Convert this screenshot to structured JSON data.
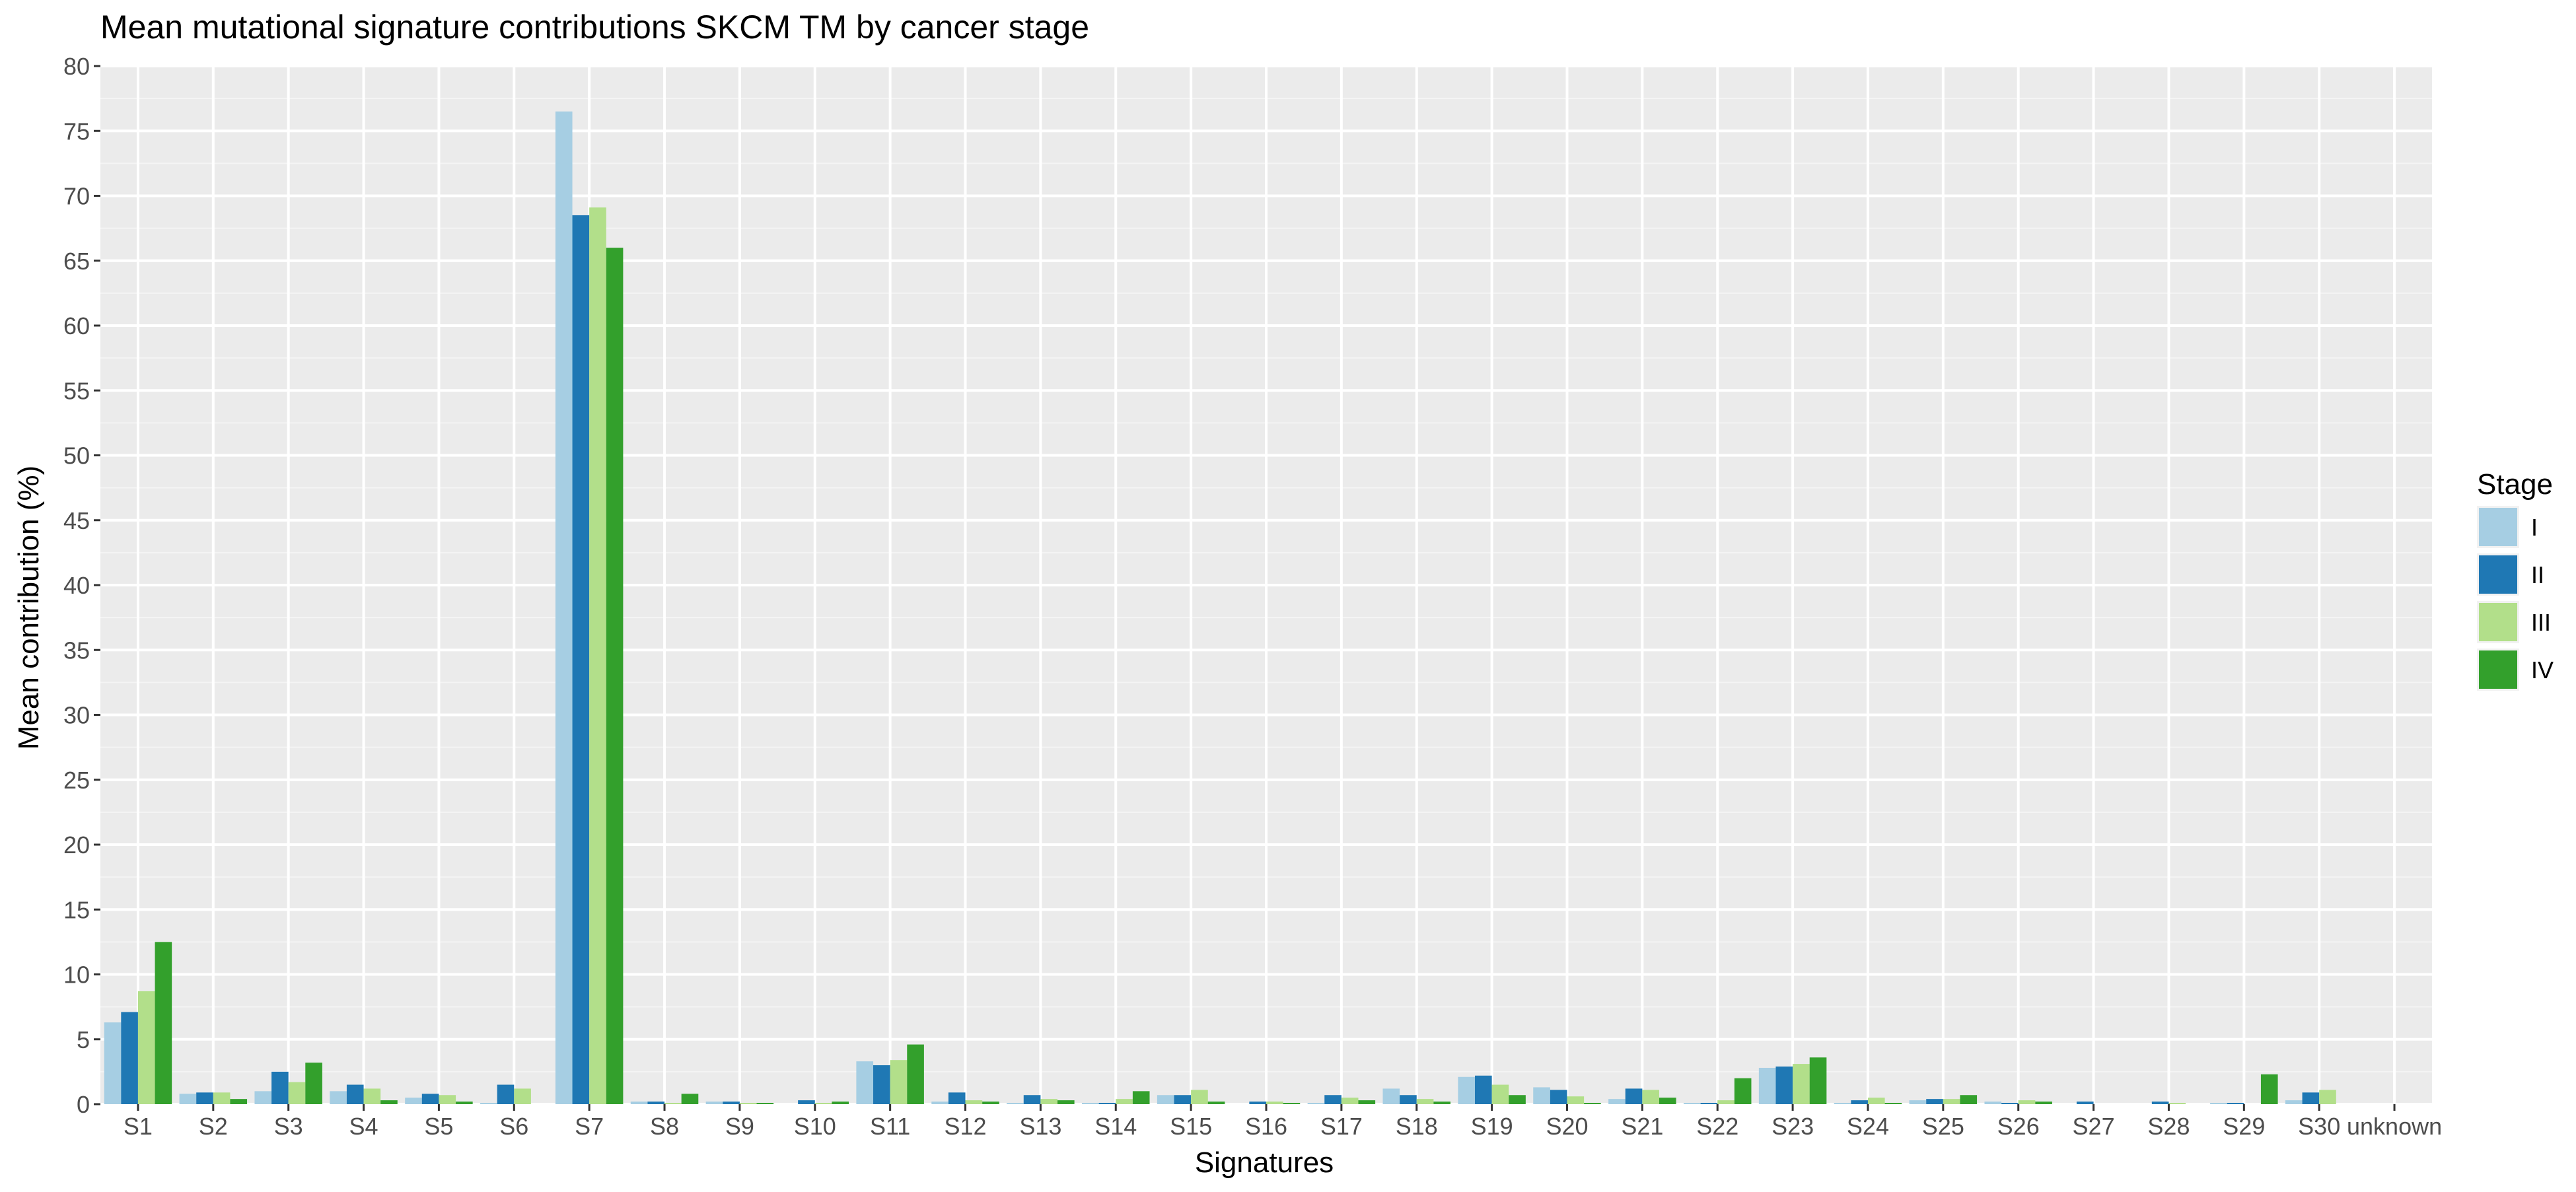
{
  "chart_data": {
    "type": "bar",
    "title": "Mean mutational signature contributions SKCM TM by cancer stage",
    "xlabel": "Signatures",
    "ylabel": "Mean contribution (%)",
    "ylim": [
      0,
      80
    ],
    "y_ticks": [
      0,
      5,
      10,
      15,
      20,
      25,
      30,
      35,
      40,
      45,
      50,
      55,
      60,
      65,
      70,
      75,
      80
    ],
    "grid": true,
    "legend_title": "Stage",
    "legend_position": "right",
    "categories": [
      "S1",
      "S2",
      "S3",
      "S4",
      "S5",
      "S6",
      "S7",
      "S8",
      "S9",
      "S10",
      "S11",
      "S12",
      "S13",
      "S14",
      "S15",
      "S16",
      "S17",
      "S18",
      "S19",
      "S20",
      "S21",
      "S22",
      "S23",
      "S24",
      "S25",
      "S26",
      "S27",
      "S28",
      "S29",
      "S30",
      "unknown"
    ],
    "series": [
      {
        "name": "I",
        "color": "#a6cee3",
        "values": [
          6.3,
          0.8,
          1.0,
          1.0,
          0.5,
          0.1,
          76.5,
          0.2,
          0.2,
          0.0,
          3.3,
          0.2,
          0.1,
          0.1,
          0.7,
          0.0,
          0.1,
          1.2,
          2.1,
          1.3,
          0.4,
          0.1,
          2.8,
          0.1,
          0.3,
          0.2,
          0.0,
          0.0,
          0.1,
          0.3,
          0.0
        ]
      },
      {
        "name": "II",
        "color": "#1f78b4",
        "values": [
          7.1,
          0.9,
          2.5,
          1.5,
          0.8,
          1.5,
          68.5,
          0.2,
          0.2,
          0.3,
          3.0,
          0.9,
          0.7,
          0.1,
          0.7,
          0.2,
          0.7,
          0.7,
          2.2,
          1.1,
          1.2,
          0.1,
          2.9,
          0.3,
          0.4,
          0.1,
          0.2,
          0.2,
          0.1,
          0.9,
          0.0
        ]
      },
      {
        "name": "III",
        "color": "#b2df8a",
        "values": [
          8.7,
          0.9,
          1.7,
          1.2,
          0.7,
          1.2,
          69.1,
          0.1,
          0.1,
          0.1,
          3.4,
          0.3,
          0.4,
          0.4,
          1.1,
          0.2,
          0.5,
          0.4,
          1.5,
          0.6,
          1.1,
          0.3,
          3.1,
          0.5,
          0.4,
          0.3,
          0.0,
          0.1,
          0.0,
          1.1,
          0.0
        ]
      },
      {
        "name": "IV",
        "color": "#33a02c",
        "values": [
          12.5,
          0.4,
          3.2,
          0.3,
          0.2,
          0.0,
          66.0,
          0.8,
          0.1,
          0.2,
          4.6,
          0.2,
          0.3,
          1.0,
          0.2,
          0.1,
          0.3,
          0.2,
          0.7,
          0.1,
          0.5,
          2.0,
          3.6,
          0.1,
          0.7,
          0.2,
          0.0,
          0.0,
          2.3,
          0.0,
          0.0
        ]
      }
    ]
  }
}
